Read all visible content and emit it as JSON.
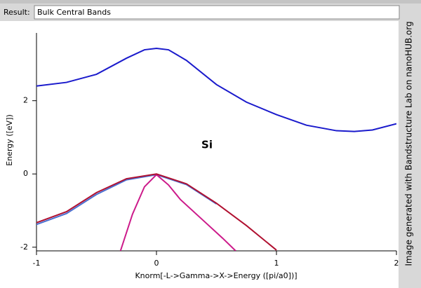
{
  "result": {
    "label": "Result:",
    "value": "Bulk Central Bands"
  },
  "watermark": "Image generated with Bandstructure Lab on nanoHUB.org",
  "chart_data": {
    "type": "line",
    "xlabel": "Knorm[-L->Gamma->X->Energy ([pi/a0])]",
    "ylabel": "Energy ([eV])",
    "annotation": "Si",
    "xlim": [
      -1,
      2
    ],
    "xticks": [
      -1,
      0,
      1,
      2
    ],
    "ylim": [
      -2.1,
      3.85
    ],
    "yticks": [
      -2,
      0,
      2
    ],
    "series": [
      {
        "color": "#1a1acc",
        "x": [
          -1,
          -0.75,
          -0.5,
          -0.25,
          -0.1,
          0,
          0.1,
          0.25,
          0.5,
          0.75,
          1,
          1.25,
          1.5,
          1.65,
          1.8,
          2
        ],
        "values": [
          2.4,
          2.5,
          2.72,
          3.16,
          3.39,
          3.43,
          3.39,
          3.1,
          2.44,
          1.96,
          1.62,
          1.33,
          1.18,
          1.16,
          1.2,
          1.37
        ]
      },
      {
        "color": "#4a6fd0",
        "x": [
          -1,
          -0.75,
          -0.5,
          -0.25,
          0,
          0.25,
          0.5
        ],
        "values": [
          -1.38,
          -1.08,
          -0.56,
          -0.16,
          -0.02,
          -0.29,
          -0.82
        ]
      },
      {
        "color": "#cc1a8a",
        "x": [
          -0.3,
          -0.2,
          -0.1,
          0,
          0.1,
          0.2,
          0.4,
          0.55,
          0.66
        ],
        "values": [
          -2.1,
          -1.1,
          -0.35,
          -0.02,
          -0.3,
          -0.7,
          -1.3,
          -1.75,
          -2.1
        ]
      },
      {
        "color": "#b01030",
        "x": [
          -1,
          -0.75,
          -0.5,
          -0.25,
          0,
          0.25,
          0.5,
          0.75,
          1
        ],
        "values": [
          -1.33,
          -1.03,
          -0.51,
          -0.13,
          0,
          -0.27,
          -0.8,
          -1.41,
          -2.08
        ]
      }
    ]
  }
}
